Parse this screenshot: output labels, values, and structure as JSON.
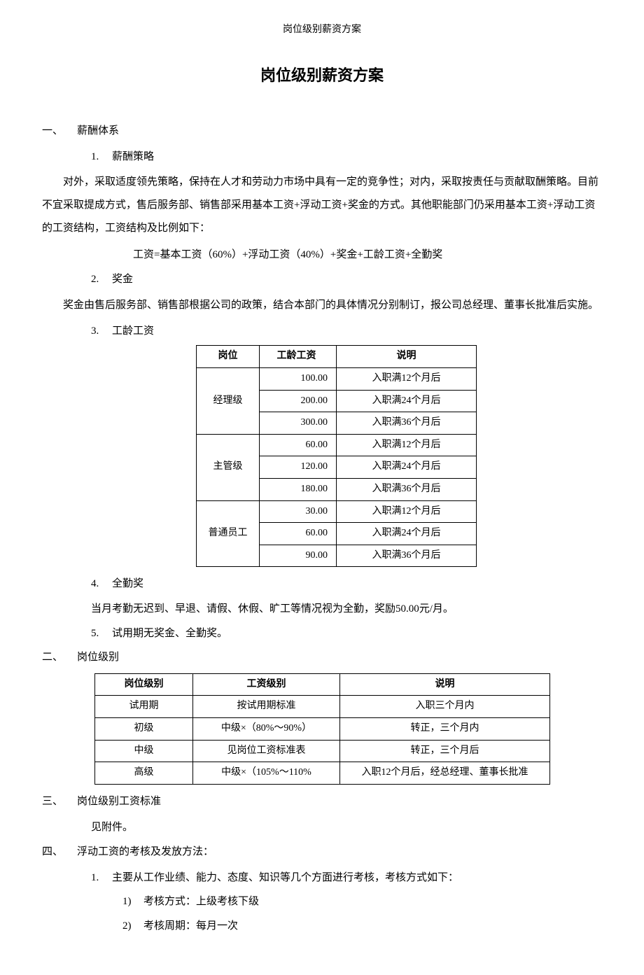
{
  "header": "岗位级别薪资方案",
  "title": "岗位级别薪资方案",
  "sections": {
    "s1": {
      "num": "一、",
      "title": "薪酬体系",
      "items": {
        "i1": {
          "num": "1.",
          "label": "薪酬策略"
        },
        "i2": {
          "num": "2.",
          "label": "奖金"
        },
        "i3": {
          "num": "3.",
          "label": "工龄工资"
        },
        "i4": {
          "num": "4.",
          "label": "全勤奖"
        },
        "i5": {
          "num": "5.",
          "label": "试用期无奖金、全勤奖。"
        }
      },
      "p1": "对外，采取适度领先策略，保持在人才和劳动力市场中具有一定的竞争性；对内，采取按责任与贡献取酬策略。目前不宜采取提成方式，售后服务部、销售部采用基本工资+浮动工资+奖金的方式。其他职能部门仍采用基本工资+浮动工资的工资结构，工资结构及比例如下：",
      "formula": "工资=基本工资（60%）+浮动工资（40%）+奖金+工龄工资+全勤奖",
      "p2": "奖金由售后服务部、销售部根据公司的政策，结合本部门的具体情况分别制订，报公司总经理、董事长批准后实施。",
      "p4": "当月考勤无迟到、早退、请假、休假、旷工等情况视为全勤，奖励50.00元/月。"
    },
    "s2": {
      "num": "二、",
      "title": "岗位级别"
    },
    "s3": {
      "num": "三、",
      "title": "岗位级别工资标准",
      "p": "见附件。"
    },
    "s4": {
      "num": "四、",
      "title": "浮动工资的考核及发放方法：",
      "i1": {
        "num": "1.",
        "label": "主要从工作业绩、能力、态度、知识等几个方面进行考核，考核方式如下："
      },
      "sub1": {
        "num": "1)",
        "label": "考核方式：上级考核下级"
      },
      "sub2": {
        "num": "2)",
        "label": "考核周期：每月一次"
      }
    }
  },
  "table1": {
    "headers": {
      "c1": "岗位",
      "c2": "工龄工资",
      "c3": "说明"
    },
    "groups": [
      {
        "name": "经理级",
        "rows": [
          {
            "v": "100.00",
            "d": "入职满12个月后"
          },
          {
            "v": "200.00",
            "d": "入职满24个月后"
          },
          {
            "v": "300.00",
            "d": "入职满36个月后"
          }
        ]
      },
      {
        "name": "主管级",
        "rows": [
          {
            "v": "60.00",
            "d": "入职满12个月后"
          },
          {
            "v": "120.00",
            "d": "入职满24个月后"
          },
          {
            "v": "180.00",
            "d": "入职满36个月后"
          }
        ]
      },
      {
        "name": "普通员工",
        "rows": [
          {
            "v": "30.00",
            "d": "入职满12个月后"
          },
          {
            "v": "60.00",
            "d": "入职满24个月后"
          },
          {
            "v": "90.00",
            "d": "入职满36个月后"
          }
        ]
      }
    ]
  },
  "table2": {
    "headers": {
      "c1": "岗位级别",
      "c2": "工资级别",
      "c3": "说明"
    },
    "rows": [
      {
        "a": "试用期",
        "b": "按试用期标准",
        "c": "入职三个月内"
      },
      {
        "a": "初级",
        "b": "中级×（80%～90%）",
        "c": "转正，三个月内"
      },
      {
        "a": "中级",
        "b": "见岗位工资标准表",
        "c": "转正，三个月后"
      },
      {
        "a": "高级",
        "b": "中级×（105%～110%",
        "c": "入职12个月后，经总经理、董事长批准"
      }
    ]
  }
}
